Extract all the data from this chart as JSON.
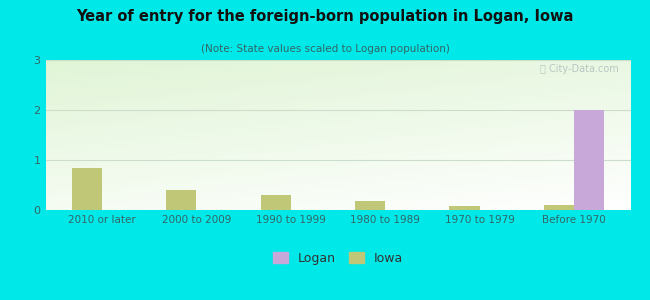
{
  "title": "Year of entry for the foreign-born population in Logan, Iowa",
  "subtitle": "(Note: State values scaled to Logan population)",
  "categories": [
    "2010 or later",
    "2000 to 2009",
    "1990 to 1999",
    "1980 to 1989",
    "1970 to 1979",
    "Before 1970"
  ],
  "logan_values": [
    0,
    0,
    0,
    0,
    0,
    2.0
  ],
  "iowa_values": [
    0.85,
    0.4,
    0.3,
    0.18,
    0.08,
    0.1
  ],
  "logan_color": "#c8a8d8",
  "iowa_color": "#c0c878",
  "background_color": "#00e8e8",
  "ylim": [
    0,
    3
  ],
  "yticks": [
    0,
    1,
    2,
    3
  ],
  "bar_width": 0.32,
  "legend_logan": "Logan",
  "legend_iowa": "Iowa",
  "watermark": "Ⓢ City-Data.com"
}
